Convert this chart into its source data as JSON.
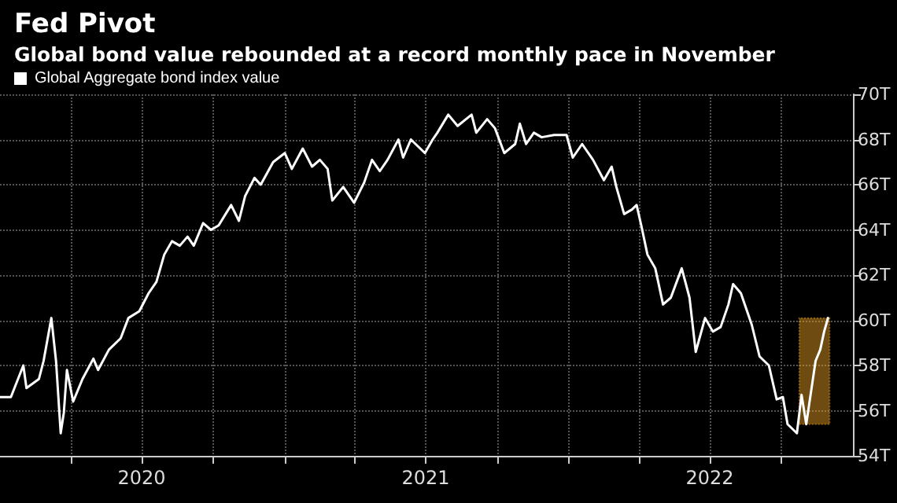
{
  "chart_data": {
    "type": "line",
    "title": "Fed Pivot",
    "subtitle": "Global bond value rebounded at a record monthly pace in November",
    "x": [
      "2020-01-01",
      "2020-01-15",
      "2020-01-31",
      "2020-02-04",
      "2020-02-20",
      "2020-02-26",
      "2020-03-07",
      "2020-03-13",
      "2020-03-19",
      "2020-03-23",
      "2020-03-27",
      "2020-04-04",
      "2020-04-16",
      "2020-04-30",
      "2020-05-06",
      "2020-05-20",
      "2020-06-04",
      "2020-06-14",
      "2020-06-28",
      "2020-07-10",
      "2020-07-20",
      "2020-07-30",
      "2020-08-09",
      "2020-08-19",
      "2020-08-29",
      "2020-09-06",
      "2020-09-18",
      "2020-09-28",
      "2020-10-08",
      "2020-10-24",
      "2020-11-03",
      "2020-11-11",
      "2020-11-23",
      "2020-12-01",
      "2020-12-17",
      "2021-01-01",
      "2021-01-10",
      "2021-01-24",
      "2021-02-05",
      "2021-02-15",
      "2021-02-25",
      "2021-03-03",
      "2021-03-17",
      "2021-03-31",
      "2021-04-13",
      "2021-04-23",
      "2021-05-03",
      "2021-05-13",
      "2021-05-27",
      "2021-06-02",
      "2021-06-12",
      "2021-06-30",
      "2021-07-10",
      "2021-07-16",
      "2021-07-30",
      "2021-08-11",
      "2021-08-29",
      "2021-09-04",
      "2021-09-18",
      "2021-09-28",
      "2021-10-10",
      "2021-10-24",
      "2021-10-30",
      "2021-11-07",
      "2021-11-17",
      "2021-11-27",
      "2021-12-13",
      "2021-12-29",
      "2022-01-06",
      "2022-01-18",
      "2022-02-01",
      "2022-02-15",
      "2022-02-25",
      "2022-03-03",
      "2022-03-13",
      "2022-03-23",
      "2022-03-29",
      "2022-04-04",
      "2022-04-12",
      "2022-04-22",
      "2022-05-02",
      "2022-05-12",
      "2022-05-26",
      "2022-06-05",
      "2022-06-13",
      "2022-06-25",
      "2022-07-05",
      "2022-07-15",
      "2022-07-25",
      "2022-07-31",
      "2022-08-10",
      "2022-08-24",
      "2022-09-03",
      "2022-09-15",
      "2022-09-25",
      "2022-10-03",
      "2022-10-09",
      "2022-10-21",
      "2022-10-27",
      "2022-11-02",
      "2022-11-14",
      "2022-11-20",
      "2022-11-25",
      "2022-11-30"
    ],
    "series": [
      {
        "name": "Global Aggregate bond index value",
        "color": "#ffffff",
        "values": [
          56.6,
          56.6,
          58.0,
          57.0,
          57.4,
          58.2,
          60.1,
          58.2,
          55.0,
          55.9,
          57.8,
          56.4,
          57.4,
          58.3,
          57.8,
          58.7,
          59.2,
          60.1,
          60.4,
          61.2,
          61.7,
          62.9,
          63.5,
          63.3,
          63.7,
          63.3,
          64.3,
          64.0,
          64.2,
          65.1,
          64.4,
          65.5,
          66.3,
          66.0,
          67.0,
          67.4,
          66.7,
          67.6,
          66.8,
          67.1,
          66.7,
          65.3,
          65.9,
          65.2,
          66.1,
          67.1,
          66.6,
          67.1,
          68.0,
          67.2,
          68.0,
          67.4,
          68.0,
          68.3,
          69.1,
          68.6,
          69.1,
          68.3,
          68.9,
          68.5,
          67.4,
          67.8,
          68.7,
          67.8,
          68.3,
          68.1,
          68.2,
          68.2,
          67.2,
          67.8,
          67.1,
          66.2,
          66.8,
          65.9,
          64.7,
          64.9,
          65.1,
          64.2,
          62.9,
          62.3,
          60.7,
          61.0,
          62.3,
          61.0,
          58.6,
          60.1,
          59.5,
          59.7,
          60.7,
          61.6,
          61.2,
          59.8,
          58.4,
          58.0,
          56.5,
          56.6,
          55.4,
          55.0,
          56.7,
          55.4,
          58.2,
          58.7,
          59.5,
          60.1
        ]
      }
    ],
    "xlim": [
      "2020-01-01",
      "2023-01-01"
    ],
    "xticks": [
      {
        "value": "2020-04-01",
        "label": null
      },
      {
        "value": "2020-07-01",
        "label": "2020"
      },
      {
        "value": "2020-10-01",
        "label": null
      },
      {
        "value": "2021-01-01",
        "label": null
      },
      {
        "value": "2021-04-01",
        "label": null
      },
      {
        "value": "2021-07-01",
        "label": "2021"
      },
      {
        "value": "2021-10-01",
        "label": null
      },
      {
        "value": "2022-01-01",
        "label": null
      },
      {
        "value": "2022-04-01",
        "label": null
      },
      {
        "value": "2022-07-01",
        "label": "2022"
      },
      {
        "value": "2022-10-01",
        "label": null
      }
    ],
    "ylim": [
      54,
      70
    ],
    "yticks": [
      {
        "value": 54,
        "label": "54T"
      },
      {
        "value": 56,
        "label": "56T"
      },
      {
        "value": 58,
        "label": "58T"
      },
      {
        "value": 60,
        "label": "60T"
      },
      {
        "value": 62,
        "label": "62T"
      },
      {
        "value": 64,
        "label": "64T"
      },
      {
        "value": 66,
        "label": "66T"
      },
      {
        "value": 68,
        "label": "68T"
      },
      {
        "value": 70,
        "label": "70T"
      }
    ],
    "bands": [
      {
        "axis": "x",
        "from": "2022-10-24",
        "to": "2022-12-02",
        "label": null,
        "color": "#f5a623"
      }
    ],
    "grid": true,
    "legend": "top left",
    "marker": "none",
    "line_style": "solid"
  }
}
